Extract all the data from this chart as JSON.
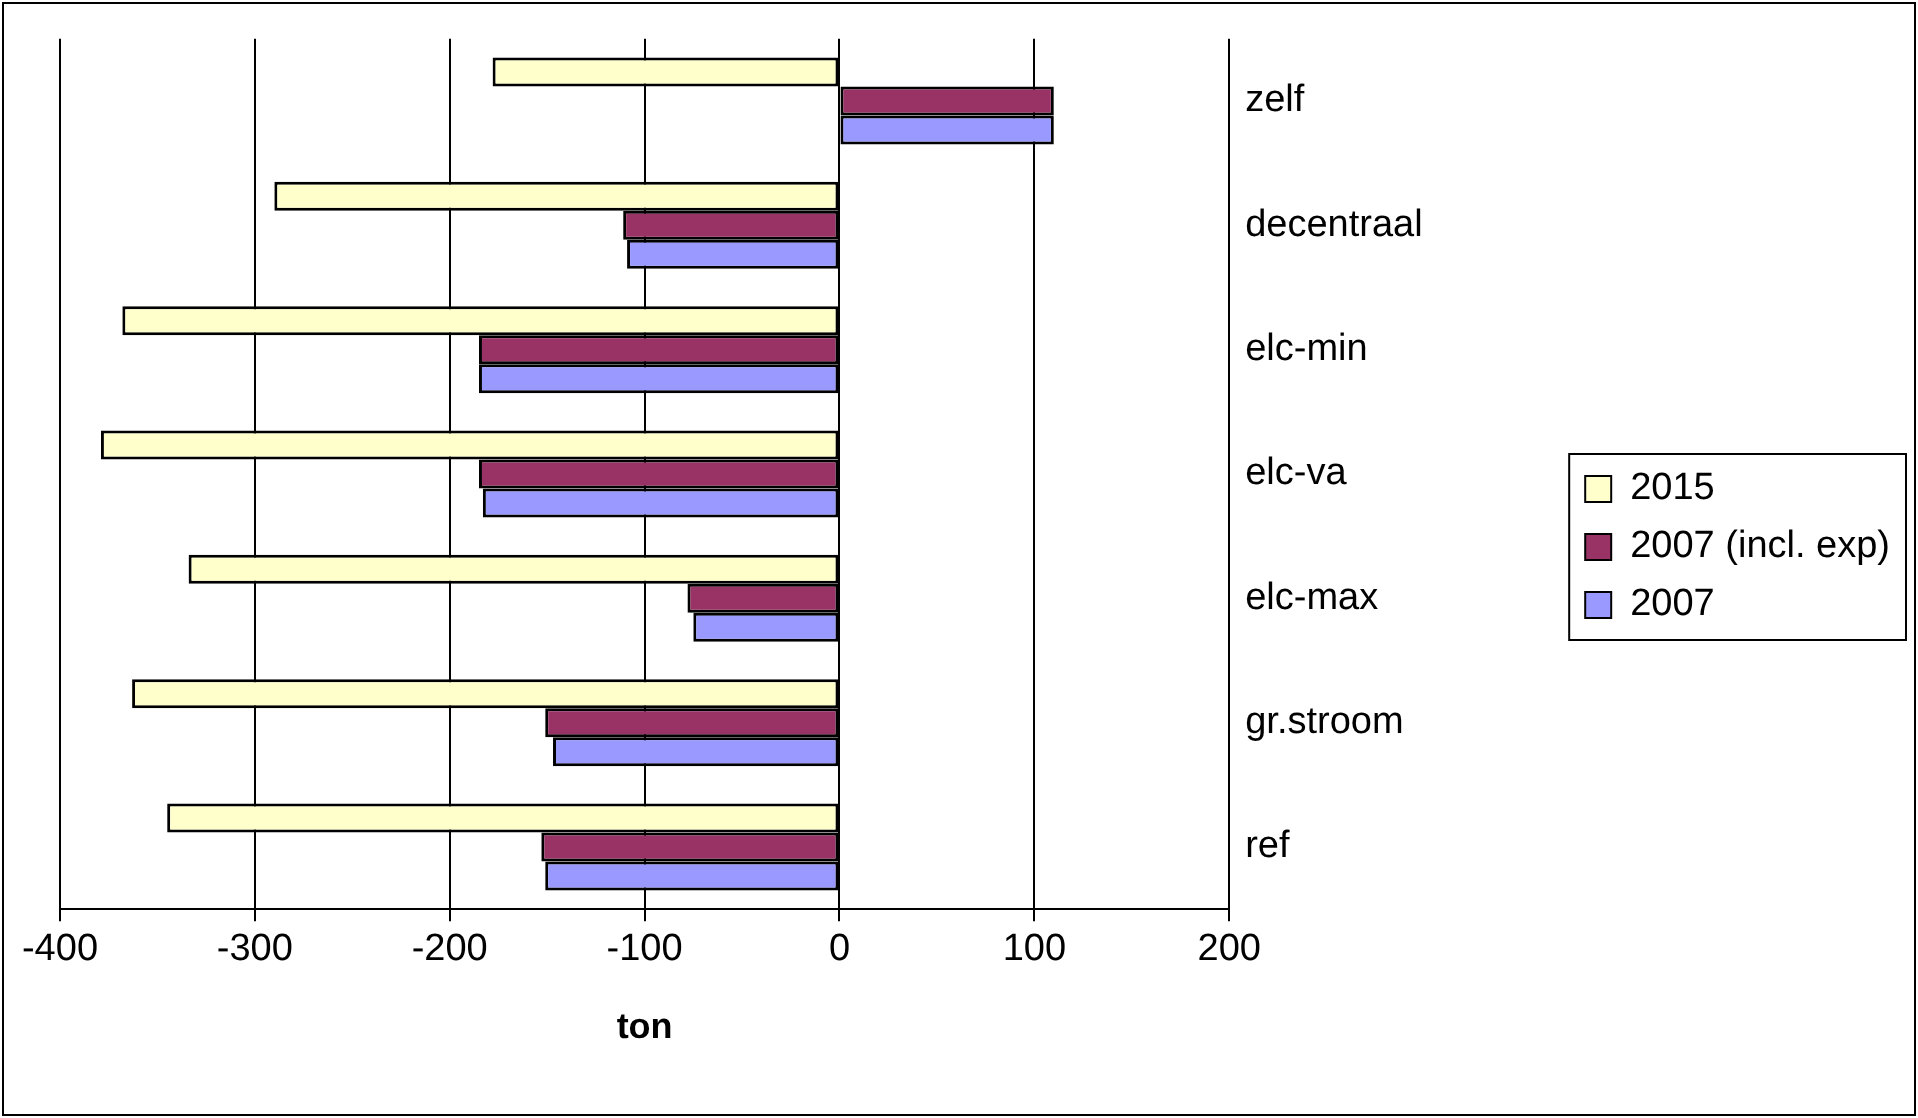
{
  "chart_data": {
    "type": "bar",
    "orientation": "horizontal",
    "xlabel": "ton",
    "categories": [
      "zelf",
      "decentraal",
      "elc-min",
      "elc-va",
      "elc-max",
      "gr.stroom",
      "ref"
    ],
    "series": [
      {
        "name": "2015",
        "color": "#ffffcc",
        "values": [
          -178,
          -290,
          -368,
          -379,
          -334,
          -363,
          -345
        ]
      },
      {
        "name": "2007 (incl. exp)",
        "color": "#993366",
        "values": [
          110,
          -111,
          -185,
          -185,
          -78,
          -151,
          -153
        ]
      },
      {
        "name": "2007",
        "color": "#9999ff",
        "values": [
          110,
          -109,
          -185,
          -183,
          -75,
          -147,
          -151
        ]
      }
    ],
    "xlim": [
      -400,
      200
    ],
    "xticks": [
      -400,
      -300,
      -200,
      -100,
      0,
      100,
      200
    ],
    "grid": "x",
    "legend": "right"
  }
}
